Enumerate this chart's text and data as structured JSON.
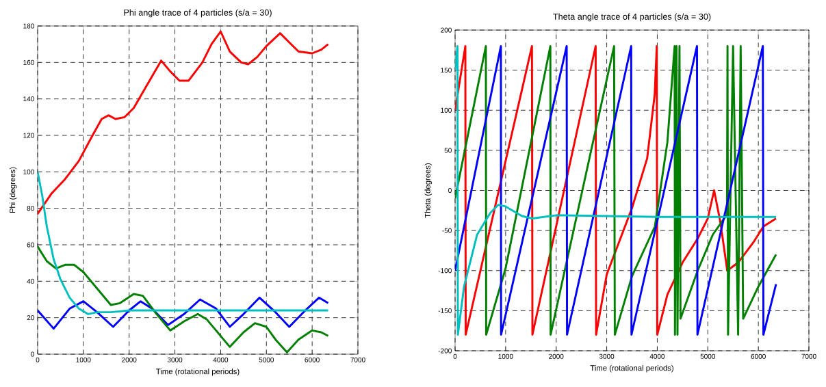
{
  "chart_data": [
    {
      "type": "line",
      "title": "Phi angle trace of 4 particles (s/a = 30)",
      "xlabel": "Time (rotational periods)",
      "ylabel": "Phi (degrees)",
      "xlim": [
        0,
        7000
      ],
      "ylim": [
        0,
        180
      ],
      "xticks": [
        0,
        1000,
        2000,
        3000,
        4000,
        5000,
        6000,
        7000
      ],
      "yticks": [
        0,
        20,
        40,
        60,
        80,
        100,
        120,
        140,
        160,
        180
      ],
      "grid": true,
      "series": [
        {
          "color": "#ff0000",
          "x": [
            0,
            300,
            600,
            900,
            1200,
            1400,
            1550,
            1700,
            1900,
            2100,
            2400,
            2700,
            2900,
            3100,
            3300,
            3600,
            3800,
            4000,
            4200,
            4450,
            4600,
            4800,
            5000,
            5300,
            5500,
            5700,
            6000,
            6200,
            6350
          ],
          "values": [
            77,
            88,
            96,
            106,
            120,
            129,
            131,
            129,
            130,
            135,
            148,
            161,
            155,
            150,
            150,
            160,
            170,
            177,
            166,
            160,
            159,
            163,
            169,
            176,
            171,
            166,
            165,
            167,
            170
          ]
        },
        {
          "color": "#0000ff",
          "x": [
            0,
            350,
            700,
            1000,
            1300,
            1650,
            2000,
            2250,
            2500,
            2850,
            3200,
            3550,
            3900,
            4200,
            4500,
            4850,
            5200,
            5500,
            5850,
            6150,
            6350
          ],
          "values": [
            24,
            14,
            25,
            29,
            23,
            15,
            24,
            29,
            25,
            16,
            22,
            30,
            25,
            15,
            22,
            31,
            23,
            15,
            24,
            31,
            28
          ]
        },
        {
          "color": "#008000",
          "x": [
            0,
            200,
            400,
            600,
            800,
            1000,
            1300,
            1600,
            1800,
            2100,
            2300,
            2600,
            2900,
            3200,
            3500,
            3700,
            4000,
            4200,
            4500,
            4750,
            5000,
            5200,
            5450,
            5700,
            6000,
            6200,
            6350
          ],
          "values": [
            59,
            51,
            47,
            49,
            49,
            45,
            36,
            27,
            28,
            33,
            32,
            22,
            13,
            18,
            22,
            19,
            10,
            4,
            12,
            17,
            15,
            8,
            1,
            8,
            13,
            12,
            10
          ]
        },
        {
          "color": "#00bfbf",
          "x": [
            0,
            100,
            200,
            350,
            500,
            700,
            900,
            1100,
            1300,
            1600,
            2000,
            3000,
            4000,
            5000,
            6350
          ],
          "values": [
            100,
            87,
            70,
            52,
            41,
            31,
            25,
            22,
            23,
            23,
            24,
            24,
            24,
            24,
            24
          ]
        }
      ]
    },
    {
      "type": "line",
      "title": "Theta angle trace of 4 particles (s/a = 30)",
      "xlabel": "Time (rotational periods)",
      "ylabel": "Theta (degrees)",
      "xlim": [
        0,
        7000
      ],
      "ylim": [
        -200,
        200
      ],
      "xticks": [
        0,
        1000,
        2000,
        3000,
        4000,
        5000,
        6000,
        7000
      ],
      "yticks": [
        -200,
        -150,
        -100,
        -50,
        0,
        50,
        100,
        150,
        200
      ],
      "grid": true,
      "series": [
        {
          "color": "#ff0000",
          "x": [
            0,
            203,
            210,
            1521,
            1530,
            2781,
            2790,
            3000,
            3500,
            3800,
            3950,
            3990,
            4000,
            4200,
            4500,
            4800,
            5000,
            5125,
            5250,
            5385,
            5600,
            5900,
            6100,
            6350
          ],
          "values": [
            100,
            180,
            -180,
            180,
            -180,
            180,
            -180,
            -105,
            -22,
            40,
            120,
            180,
            -180,
            -130,
            -90,
            -60,
            -35,
            0,
            -40,
            -100,
            -90,
            -65,
            -45,
            -35
          ]
        },
        {
          "color": "#008000",
          "x": [
            0,
            609,
            615,
            1000,
            1885,
            1890,
            3146,
            3160,
            3500,
            3953,
            4200,
            4344,
            4350,
            4380,
            4400,
            4440,
            4460,
            4800,
            5100,
            5380,
            5390,
            5400,
            5500,
            5600,
            5650,
            5700,
            6000,
            6350
          ],
          "values": [
            -10,
            180,
            -180,
            -97,
            180,
            -180,
            180,
            -180,
            -107,
            -45,
            60,
            180,
            -180,
            180,
            -180,
            180,
            -160,
            -100,
            -55,
            -30,
            180,
            -180,
            180,
            -180,
            180,
            -160,
            -120,
            -80
          ]
        },
        {
          "color": "#0000ff",
          "x": [
            0,
            906,
            910,
            2208,
            2215,
            3484,
            3490,
            4786,
            4795,
            6089,
            6100,
            6350
          ],
          "values": [
            -100,
            180,
            -180,
            180,
            -180,
            180,
            -180,
            180,
            -180,
            180,
            -180,
            -117
          ]
        },
        {
          "color": "#00bfbf",
          "x": [
            0,
            47,
            55,
            177,
            437,
            698,
            854,
            1000,
            1323,
            1531,
            2000,
            3000,
            4000,
            5000,
            6350
          ],
          "values": [
            150,
            180,
            -180,
            -120,
            -55,
            -28,
            -18,
            -20,
            -32,
            -35,
            -31,
            -32,
            -33,
            -33,
            -33
          ]
        }
      ]
    }
  ]
}
